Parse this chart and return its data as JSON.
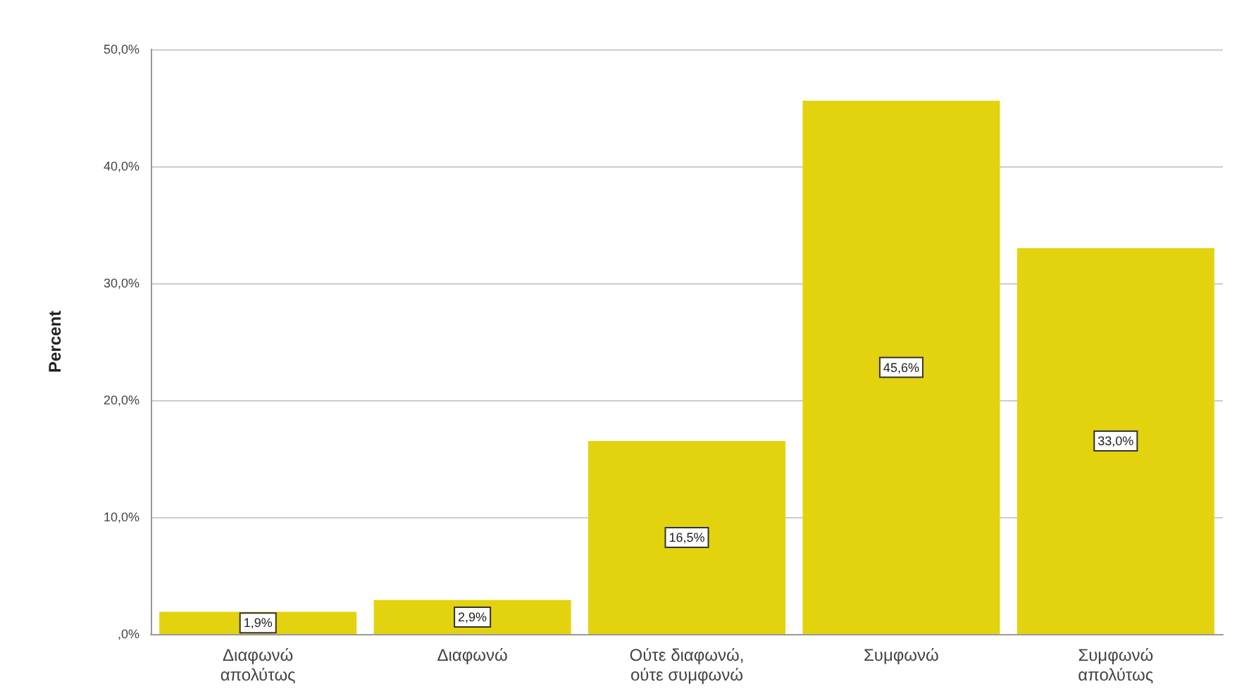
{
  "chart_data": {
    "type": "bar",
    "ylabel": "Percent",
    "categories": [
      "Διαφωνώ\nαπολύτως",
      "Διαφωνώ",
      "Ούτε διαφωνώ,\nούτε συμφωνώ",
      "Συμφωνώ",
      "Συμφωνώ\nαπολύτως"
    ],
    "values": [
      1.9,
      2.9,
      16.5,
      45.6,
      33.0
    ],
    "value_labels": [
      "1,9%",
      "2,9%",
      "16,5%",
      "45,6%",
      "33,0%"
    ],
    "color": "#e2d30e",
    "ylim": [
      0,
      50
    ],
    "yticks": [
      {
        "value": 0,
        "label": ",0%"
      },
      {
        "value": 10,
        "label": "10,0%"
      },
      {
        "value": 20,
        "label": "20,0%"
      },
      {
        "value": 30,
        "label": "30,0%"
      },
      {
        "value": 40,
        "label": "40,0%"
      },
      {
        "value": 50,
        "label": "50,0%"
      }
    ],
    "grid": "y"
  }
}
